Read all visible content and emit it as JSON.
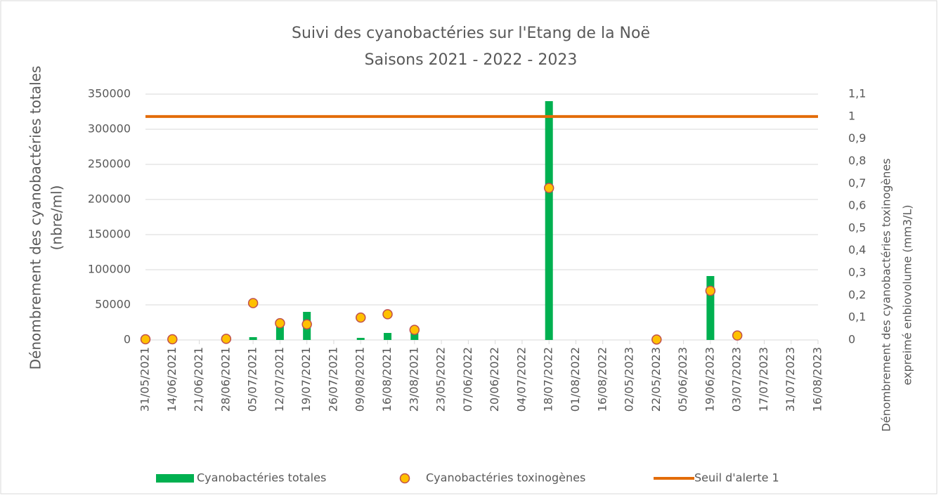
{
  "chart_data": {
    "type": "bar-line",
    "title": [
      "Suivi des cyanobactéries sur l'Etang de la Noë",
      "Saisons 2021 - 2022 - 2023"
    ],
    "y_label": [
      "Dénombrement des cyanobactéries totales",
      "(nbre/ml)"
    ],
    "y2_label": [
      "Dénombrement des cyanobactéries toxinogènes",
      "expreimé enbiovolume (mm3/L)"
    ],
    "categories": [
      "31/05/2021",
      "14/06/2021",
      "21/06/2021",
      "28/06/2021",
      "05/07/2021",
      "12/07/2021",
      "19/07/2021",
      "26/07/2021",
      "09/08/2021",
      "16/08/2021",
      "23/08/2021",
      "23/05/2022",
      "07/06/2022",
      "20/06/2022",
      "04/07/2022",
      "18/07/2022",
      "01/08/2022",
      "16/08/2022",
      "02/05/2023",
      "22/05/2023",
      "05/06/2023",
      "19/06/2023",
      "03/07/2023",
      "17/07/2023",
      "31/07/2023",
      "16/08/2023"
    ],
    "series": [
      {
        "name": "Cyanobactéries totales",
        "kind": "bar",
        "color": "#00b050",
        "values": [
          null,
          null,
          null,
          null,
          4000,
          20000,
          40000,
          null,
          3000,
          10000,
          14000,
          null,
          null,
          null,
          null,
          340000,
          null,
          null,
          null,
          null,
          null,
          91000,
          null,
          null,
          null,
          null
        ]
      },
      {
        "name": "Cyanobactéries toxinogènes",
        "kind": "scatter",
        "axis": "y2",
        "color": "#ffc000",
        "edge": "#c0504d",
        "values": [
          0.003,
          0.003,
          null,
          0.005,
          0.165,
          0.075,
          0.07,
          null,
          0.1,
          0.115,
          0.045,
          null,
          null,
          null,
          null,
          0.68,
          null,
          null,
          null,
          0.002,
          null,
          0.22,
          0.02,
          null,
          null,
          null
        ]
      },
      {
        "name": "Seuil d'alerte 1",
        "kind": "line",
        "axis": "y2",
        "color": "#e36c09",
        "values": [
          1,
          1,
          1,
          1,
          1,
          1,
          1,
          1,
          1,
          1,
          1,
          1,
          1,
          1,
          1,
          1,
          1,
          1,
          1,
          1,
          1,
          1,
          1,
          1,
          1,
          1
        ]
      }
    ],
    "ylim": [
      0,
      350000
    ],
    "yticks": [
      0,
      50000,
      100000,
      150000,
      200000,
      250000,
      300000,
      350000
    ],
    "y2lim": [
      0,
      1.1
    ],
    "y2ticks": [
      0,
      {
        "value": 0.1,
        "label": "0,1"
      },
      {
        "value": 0.2,
        "label": "0,2"
      },
      {
        "value": 0.3,
        "label": "0,3"
      },
      {
        "value": 0.4,
        "label": "0,4"
      },
      {
        "value": 0.5,
        "label": "0,5"
      },
      {
        "value": 0.6,
        "label": "0,6"
      },
      {
        "value": 0.7,
        "label": "0,7"
      },
      {
        "value": 0.8,
        "label": "0,8"
      },
      {
        "value": 0.9,
        "label": "0,9"
      },
      1,
      {
        "value": 1.1,
        "label": "1,1"
      }
    ],
    "grid": true,
    "legend": "bottom"
  }
}
